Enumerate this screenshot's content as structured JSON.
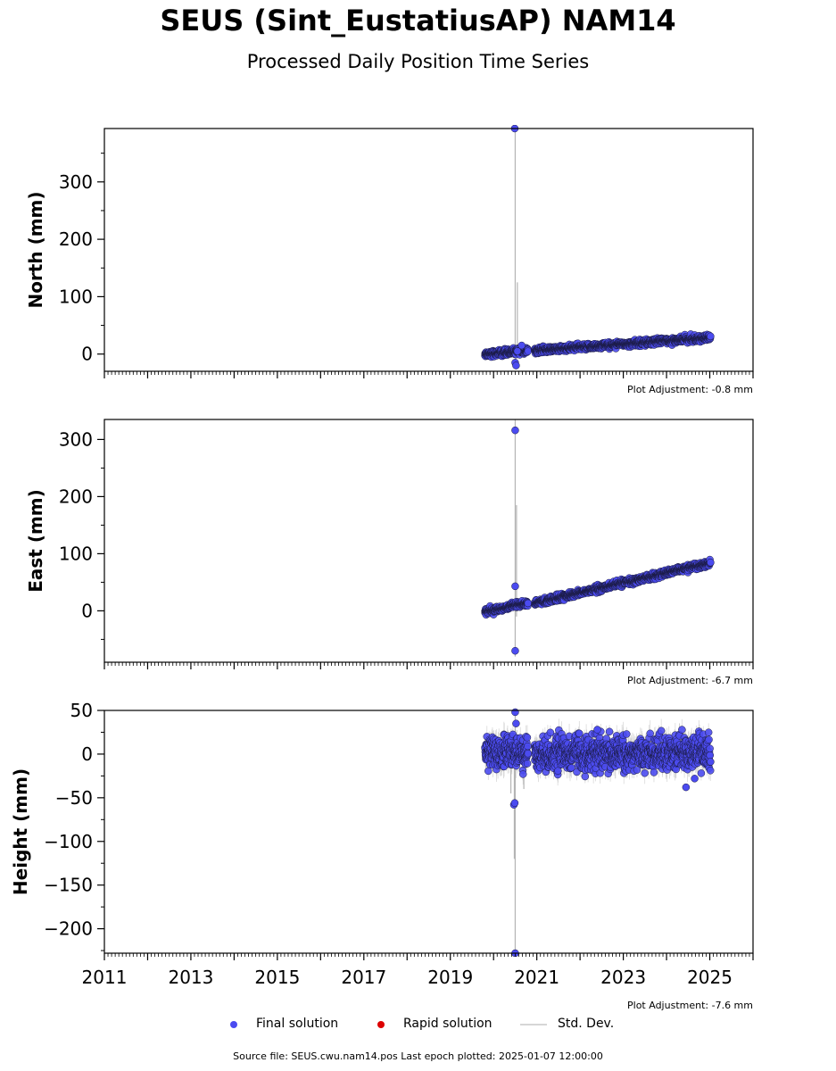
{
  "title": "SEUS (Sint_EustatiusAP) NAM14",
  "subtitle": "Processed Daily Position Time Series",
  "colors": {
    "final": "#4b4bf0",
    "rapid": "#dd0000",
    "stddev": "#c0c0c0",
    "edge": "#1a1a40"
  },
  "panels": [
    {
      "id": "north",
      "ylabel": "North (mm)",
      "ylim": [
        -30,
        393
      ],
      "yticks": [
        0,
        100,
        200,
        300
      ],
      "yticklabels": [
        "0",
        "100",
        "200",
        "300"
      ],
      "adjustment": "Plot Adjustment: -0.8 mm"
    },
    {
      "id": "east",
      "ylabel": "East (mm)",
      "ylim": [
        -90,
        335
      ],
      "yticks": [
        0,
        100,
        200,
        300
      ],
      "yticklabels": [
        "0",
        "100",
        "200",
        "300"
      ],
      "adjustment": "Plot Adjustment: -6.7 mm"
    },
    {
      "id": "height",
      "ylabel": "Height (mm)",
      "ylim": [
        -228,
        50
      ],
      "yticks": [
        -200,
        -150,
        -100,
        -50,
        0,
        50
      ],
      "yticklabels": [
        "−200",
        "−150",
        "−100",
        "−50",
        "0",
        "50"
      ],
      "adjustment": "Plot Adjustment: -7.6 mm"
    }
  ],
  "xaxis": {
    "xlim": [
      2011.0,
      2026.0
    ],
    "ticks": [
      2011,
      2013,
      2015,
      2017,
      2019,
      2021,
      2023,
      2025
    ],
    "ticklabels": [
      "2011",
      "2013",
      "2015",
      "2017",
      "2019",
      "2021",
      "2023",
      "2025"
    ]
  },
  "chart_data": {
    "type": "scatter",
    "title": "SEUS (Sint_EustatiusAP) NAM14",
    "subtitle": "Processed Daily Position Time Series",
    "segments": [
      {
        "x_range": [
          2019.8,
          2020.8
        ],
        "north": [
          0,
          6
        ],
        "east": [
          -2,
          14
        ],
        "height": [
          2,
          2
        ]
      },
      {
        "x_range": [
          2020.95,
          2025.02
        ],
        "north": [
          6,
          29
        ],
        "east": [
          13,
          84
        ],
        "height": [
          0,
          2
        ]
      }
    ],
    "scatter_sd": {
      "north": 2.5,
      "east": 2.5,
      "height": 9
    },
    "outliers": {
      "north": [
        [
          2020.49,
          393
        ],
        [
          2020.5,
          -15
        ],
        [
          2020.52,
          -20
        ],
        [
          2020.55,
          5
        ],
        [
          2020.65,
          15
        ]
      ],
      "east": [
        [
          2020.5,
          316
        ],
        [
          2020.5,
          43
        ],
        [
          2020.5,
          -70
        ]
      ],
      "height": [
        [
          2020.47,
          -58
        ],
        [
          2020.49,
          -56
        ],
        [
          2020.5,
          -228
        ],
        [
          2020.5,
          48
        ],
        [
          2020.52,
          35
        ],
        [
          2024.45,
          -38
        ],
        [
          2024.65,
          -28
        ],
        [
          2022.4,
          28
        ]
      ]
    },
    "stddev_spikes": {
      "north": [
        [
          2020.5,
          -25,
          393
        ],
        [
          2020.55,
          -5,
          125
        ]
      ],
      "east": [
        [
          2020.5,
          -80,
          335
        ],
        [
          2020.53,
          -10,
          185
        ]
      ],
      "height": [
        [
          2020.5,
          -228,
          50
        ],
        [
          2020.48,
          -120,
          10
        ],
        [
          2020.4,
          -45,
          20
        ],
        [
          2020.7,
          -40,
          15
        ]
      ]
    }
  },
  "legend": [
    {
      "label": "Final solution",
      "kind": "dot",
      "color": "#4b4bf0"
    },
    {
      "label": "Rapid solution",
      "kind": "dot",
      "color": "#dd0000"
    },
    {
      "label": "Std. Dev.",
      "kind": "line",
      "color": "#c0c0c0"
    }
  ],
  "footer": "Source file: SEUS.cwu.nam14.pos  Last epoch plotted: 2025-01-07 12:00:00"
}
